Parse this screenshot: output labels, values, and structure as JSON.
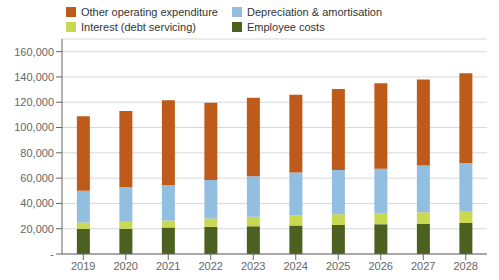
{
  "chart_data": {
    "type": "bar",
    "stacked": true,
    "categories": [
      "2019",
      "2020",
      "2021",
      "2022",
      "2023",
      "2024",
      "2025",
      "2026",
      "2027",
      "2028"
    ],
    "series": [
      {
        "name": "Employee costs",
        "color": "#4C6120",
        "values": [
          20000,
          20000,
          21000,
          21500,
          22000,
          22500,
          23000,
          23500,
          24000,
          24500
        ]
      },
      {
        "name": "Interest (debt servicing)",
        "color": "#C8D850",
        "values": [
          5000,
          5500,
          5500,
          6500,
          7500,
          8000,
          8500,
          8500,
          9000,
          9500
        ]
      },
      {
        "name": "Depreciation & amortisation",
        "color": "#92BEE0",
        "values": [
          25000,
          27500,
          28000,
          30500,
          32000,
          34000,
          35000,
          35500,
          37000,
          38000
        ]
      },
      {
        "name": "Other operating expenditure",
        "color": "#BF5B1A",
        "values": [
          59000,
          60000,
          67000,
          61000,
          62000,
          61500,
          64000,
          67500,
          68000,
          71000
        ]
      }
    ],
    "ylim": [
      0,
      170000
    ],
    "yticks": [
      {
        "value": 0,
        "label": "-"
      },
      {
        "value": 20000,
        "label": "20,000"
      },
      {
        "value": 40000,
        "label": "40,000"
      },
      {
        "value": 60000,
        "label": "60,000"
      },
      {
        "value": 80000,
        "label": "80,000"
      },
      {
        "value": 100000,
        "label": "100,000"
      },
      {
        "value": 120000,
        "label": "120,000"
      },
      {
        "value": 140000,
        "label": "140,000"
      },
      {
        "value": 160000,
        "label": "160,000"
      }
    ],
    "grid": true,
    "legend": "upper left"
  }
}
